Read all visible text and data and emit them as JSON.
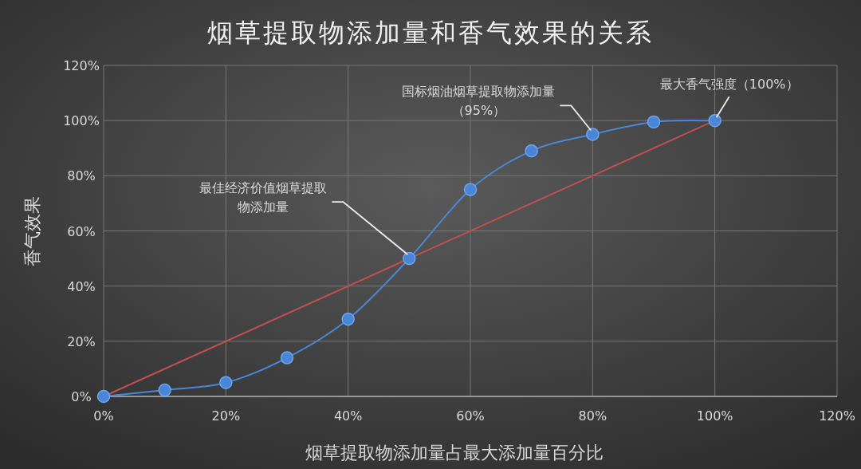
{
  "chart_data": {
    "type": "line",
    "title": "烟草提取物添加量和香气效果的关系",
    "xlabel": "烟草提取物添加量占最大添加量百分比",
    "ylabel": "香气效果",
    "x": [
      0,
      10,
      20,
      30,
      40,
      50,
      60,
      70,
      80,
      90,
      100
    ],
    "series": [
      {
        "color": "#4a86d8",
        "values": [
          0,
          2.3,
          5,
          14,
          28,
          50,
          75,
          89,
          95,
          99.5,
          100
        ],
        "marker": "circle"
      },
      {
        "type": "line",
        "color": "#c0504d",
        "x": [
          0,
          100
        ],
        "values": [
          0,
          100
        ],
        "marker": "none"
      }
    ],
    "xlim": [
      0,
      120
    ],
    "ylim": [
      0,
      120
    ],
    "xticks": [
      {
        "value": 0,
        "label": "0%"
      },
      {
        "value": 20,
        "label": "20%"
      },
      {
        "value": 40,
        "label": "40%"
      },
      {
        "value": 60,
        "label": "60%"
      },
      {
        "value": 80,
        "label": "80%"
      },
      {
        "value": 100,
        "label": "100%"
      },
      {
        "value": 120,
        "label": "120%"
      }
    ],
    "yticks": [
      {
        "value": 0,
        "label": "0%"
      },
      {
        "value": 20,
        "label": "20%"
      },
      {
        "value": 40,
        "label": "40%"
      },
      {
        "value": 60,
        "label": "60%"
      },
      {
        "value": 80,
        "label": "80%"
      },
      {
        "value": 100,
        "label": "100%"
      },
      {
        "value": 120,
        "label": "120%"
      }
    ],
    "grid": true,
    "annotations": [
      {
        "text": "最佳经济价值烟草提取物添加量",
        "x": 50,
        "y": 50
      },
      {
        "text": "国标烟油烟草提取物添加量（95%）",
        "x": 80,
        "y": 95
      },
      {
        "text": "最大香气强度（100%）",
        "x": 100,
        "y": 100
      }
    ]
  }
}
